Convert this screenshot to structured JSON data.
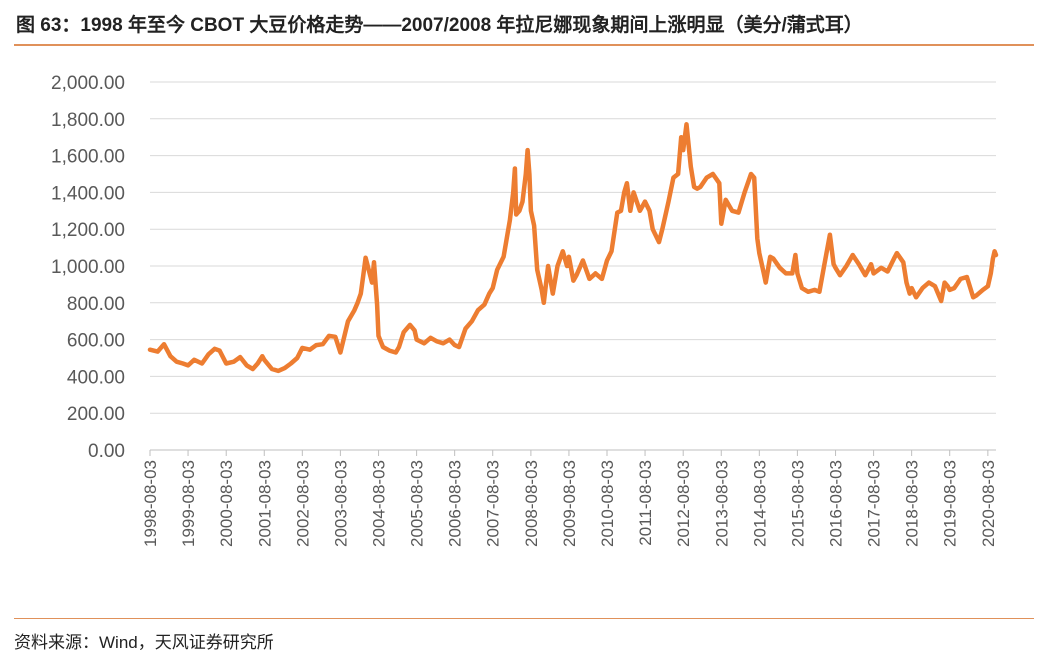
{
  "header": {
    "title": "图 63：1998 年至今 CBOT 大豆价格走势——2007/2008 年拉尼娜现象期间上涨明显（美分/蒲式耳）"
  },
  "footer": {
    "source": "资料来源：Wind，天风证券研究所"
  },
  "colors": {
    "line": "#ed7d31",
    "grid": "#d9d9d9",
    "accent_rule": "#e0915a"
  },
  "chart_data": {
    "type": "line",
    "title": "",
    "xlabel": "",
    "ylabel": "",
    "ylim": [
      0,
      2000
    ],
    "grid": "horizontal",
    "legend": "none",
    "y_ticks": [
      "0.00",
      "200.00",
      "400.00",
      "600.00",
      "800.00",
      "1,000.00",
      "1,200.00",
      "1,400.00",
      "1,600.00",
      "1,800.00",
      "2,000.00"
    ],
    "x_ticks": [
      "1998-08-03",
      "1999-08-03",
      "2000-08-03",
      "2001-08-03",
      "2002-08-03",
      "2003-08-03",
      "2004-08-03",
      "2005-08-03",
      "2006-08-03",
      "2007-08-03",
      "2008-08-03",
      "2009-08-03",
      "2010-08-03",
      "2011-08-03",
      "2012-08-03",
      "2013-08-03",
      "2014-08-03",
      "2015-08-03",
      "2016-08-03",
      "2017-08-03",
      "2018-08-03",
      "2019-08-03",
      "2020-08-03"
    ],
    "series": [
      {
        "name": "",
        "points": [
          [
            "1998-08-03",
            545
          ],
          [
            "1998-10-15",
            535
          ],
          [
            "1998-12-15",
            575
          ],
          [
            "1999-02-15",
            510
          ],
          [
            "1999-04-15",
            480
          ],
          [
            "1999-06-15",
            470
          ],
          [
            "1999-08-03",
            460
          ],
          [
            "1999-10-01",
            490
          ],
          [
            "1999-12-15",
            470
          ],
          [
            "2000-02-15",
            520
          ],
          [
            "2000-04-15",
            550
          ],
          [
            "2000-06-01",
            540
          ],
          [
            "2000-08-03",
            470
          ],
          [
            "2000-10-15",
            480
          ],
          [
            "2000-12-15",
            505
          ],
          [
            "2001-02-15",
            460
          ],
          [
            "2001-04-15",
            440
          ],
          [
            "2001-06-01",
            470
          ],
          [
            "2001-07-15",
            510
          ],
          [
            "2001-08-03",
            490
          ],
          [
            "2001-10-15",
            440
          ],
          [
            "2001-12-15",
            430
          ],
          [
            "2002-02-15",
            445
          ],
          [
            "2002-04-15",
            470
          ],
          [
            "2002-06-15",
            500
          ],
          [
            "2002-08-03",
            555
          ],
          [
            "2002-10-15",
            545
          ],
          [
            "2002-12-15",
            570
          ],
          [
            "2003-02-15",
            575
          ],
          [
            "2003-04-15",
            620
          ],
          [
            "2003-06-15",
            615
          ],
          [
            "2003-08-03",
            530
          ],
          [
            "2003-10-15",
            700
          ],
          [
            "2003-12-15",
            760
          ],
          [
            "2004-01-15",
            800
          ],
          [
            "2004-02-15",
            850
          ],
          [
            "2004-03-10",
            950
          ],
          [
            "2004-04-01",
            1045
          ],
          [
            "2004-05-01",
            980
          ],
          [
            "2004-06-01",
            910
          ],
          [
            "2004-06-20",
            1020
          ],
          [
            "2004-07-20",
            790
          ],
          [
            "2004-08-03",
            620
          ],
          [
            "2004-09-15",
            560
          ],
          [
            "2004-11-15",
            540
          ],
          [
            "2005-01-15",
            530
          ],
          [
            "2005-02-15",
            560
          ],
          [
            "2005-04-01",
            640
          ],
          [
            "2005-06-01",
            680
          ],
          [
            "2005-07-15",
            650
          ],
          [
            "2005-08-03",
            600
          ],
          [
            "2005-10-15",
            580
          ],
          [
            "2005-12-15",
            610
          ],
          [
            "2006-02-15",
            590
          ],
          [
            "2006-04-15",
            580
          ],
          [
            "2006-06-15",
            600
          ],
          [
            "2006-08-03",
            570
          ],
          [
            "2006-09-15",
            560
          ],
          [
            "2006-11-15",
            660
          ],
          [
            "2007-01-15",
            700
          ],
          [
            "2007-03-15",
            760
          ],
          [
            "2007-05-15",
            790
          ],
          [
            "2007-07-01",
            850
          ],
          [
            "2007-08-03",
            880
          ],
          [
            "2007-09-15",
            980
          ],
          [
            "2007-11-15",
            1050
          ],
          [
            "2008-01-15",
            1250
          ],
          [
            "2008-02-15",
            1400
          ],
          [
            "2008-03-03",
            1530
          ],
          [
            "2008-03-15",
            1280
          ],
          [
            "2008-04-15",
            1300
          ],
          [
            "2008-05-15",
            1350
          ],
          [
            "2008-06-15",
            1500
          ],
          [
            "2008-07-03",
            1630
          ],
          [
            "2008-07-20",
            1500
          ],
          [
            "2008-08-03",
            1300
          ],
          [
            "2008-09-03",
            1220
          ],
          [
            "2008-10-03",
            980
          ],
          [
            "2008-11-15",
            870
          ],
          [
            "2008-12-05",
            800
          ],
          [
            "2009-01-15",
            1000
          ],
          [
            "2009-03-01",
            850
          ],
          [
            "2009-04-15",
            1000
          ],
          [
            "2009-06-05",
            1080
          ],
          [
            "2009-07-15",
            1000
          ],
          [
            "2009-08-03",
            1050
          ],
          [
            "2009-09-15",
            920
          ],
          [
            "2009-10-15",
            950
          ],
          [
            "2009-12-15",
            1030
          ],
          [
            "2010-02-15",
            930
          ],
          [
            "2010-04-15",
            960
          ],
          [
            "2010-06-15",
            930
          ],
          [
            "2010-08-03",
            1030
          ],
          [
            "2010-09-15",
            1080
          ],
          [
            "2010-11-10",
            1290
          ],
          [
            "2010-12-15",
            1300
          ],
          [
            "2011-01-15",
            1400
          ],
          [
            "2011-02-10",
            1450
          ],
          [
            "2011-03-15",
            1300
          ],
          [
            "2011-04-15",
            1400
          ],
          [
            "2011-06-15",
            1300
          ],
          [
            "2011-08-03",
            1350
          ],
          [
            "2011-09-15",
            1300
          ],
          [
            "2011-10-15",
            1200
          ],
          [
            "2011-12-15",
            1130
          ],
          [
            "2012-01-15",
            1200
          ],
          [
            "2012-03-15",
            1350
          ],
          [
            "2012-05-01",
            1480
          ],
          [
            "2012-06-15",
            1500
          ],
          [
            "2012-07-15",
            1700
          ],
          [
            "2012-08-03",
            1630
          ],
          [
            "2012-09-04",
            1770
          ],
          [
            "2012-10-15",
            1540
          ],
          [
            "2012-11-15",
            1430
          ],
          [
            "2012-12-15",
            1420
          ],
          [
            "2013-01-15",
            1430
          ],
          [
            "2013-03-15",
            1480
          ],
          [
            "2013-05-15",
            1500
          ],
          [
            "2013-07-15",
            1450
          ],
          [
            "2013-08-03",
            1230
          ],
          [
            "2013-09-15",
            1360
          ],
          [
            "2013-11-15",
            1300
          ],
          [
            "2014-01-15",
            1290
          ],
          [
            "2014-03-15",
            1400
          ],
          [
            "2014-05-15",
            1500
          ],
          [
            "2014-06-15",
            1480
          ],
          [
            "2014-07-15",
            1150
          ],
          [
            "2014-08-03",
            1070
          ],
          [
            "2014-09-15",
            960
          ],
          [
            "2014-10-03",
            910
          ],
          [
            "2014-11-15",
            1050
          ],
          [
            "2014-12-15",
            1040
          ],
          [
            "2015-02-15",
            990
          ],
          [
            "2015-04-15",
            960
          ],
          [
            "2015-06-15",
            960
          ],
          [
            "2015-07-15",
            1060
          ],
          [
            "2015-08-03",
            960
          ],
          [
            "2015-09-15",
            880
          ],
          [
            "2015-11-15",
            860
          ],
          [
            "2016-01-15",
            870
          ],
          [
            "2016-03-01",
            860
          ],
          [
            "2016-04-15",
            1000
          ],
          [
            "2016-06-10",
            1170
          ],
          [
            "2016-07-15",
            1010
          ],
          [
            "2016-08-03",
            990
          ],
          [
            "2016-09-15",
            950
          ],
          [
            "2016-11-15",
            1000
          ],
          [
            "2017-01-15",
            1060
          ],
          [
            "2017-03-15",
            1010
          ],
          [
            "2017-05-15",
            950
          ],
          [
            "2017-07-10",
            1010
          ],
          [
            "2017-08-03",
            960
          ],
          [
            "2017-10-15",
            990
          ],
          [
            "2017-12-15",
            970
          ],
          [
            "2018-02-15",
            1040
          ],
          [
            "2018-03-15",
            1070
          ],
          [
            "2018-05-15",
            1020
          ],
          [
            "2018-06-15",
            910
          ],
          [
            "2018-07-15",
            850
          ],
          [
            "2018-08-03",
            880
          ],
          [
            "2018-09-15",
            830
          ],
          [
            "2018-11-15",
            880
          ],
          [
            "2019-01-15",
            910
          ],
          [
            "2019-03-15",
            890
          ],
          [
            "2019-05-13",
            810
          ],
          [
            "2019-06-15",
            910
          ],
          [
            "2019-07-15",
            890
          ],
          [
            "2019-08-03",
            870
          ],
          [
            "2019-09-15",
            880
          ],
          [
            "2019-11-15",
            930
          ],
          [
            "2020-01-15",
            940
          ],
          [
            "2020-03-15",
            830
          ],
          [
            "2020-04-15",
            840
          ],
          [
            "2020-06-15",
            870
          ],
          [
            "2020-08-03",
            890
          ],
          [
            "2020-08-31",
            960
          ],
          [
            "2020-09-20",
            1040
          ],
          [
            "2020-10-07",
            1080
          ],
          [
            "2020-10-20",
            1060
          ]
        ]
      }
    ]
  }
}
